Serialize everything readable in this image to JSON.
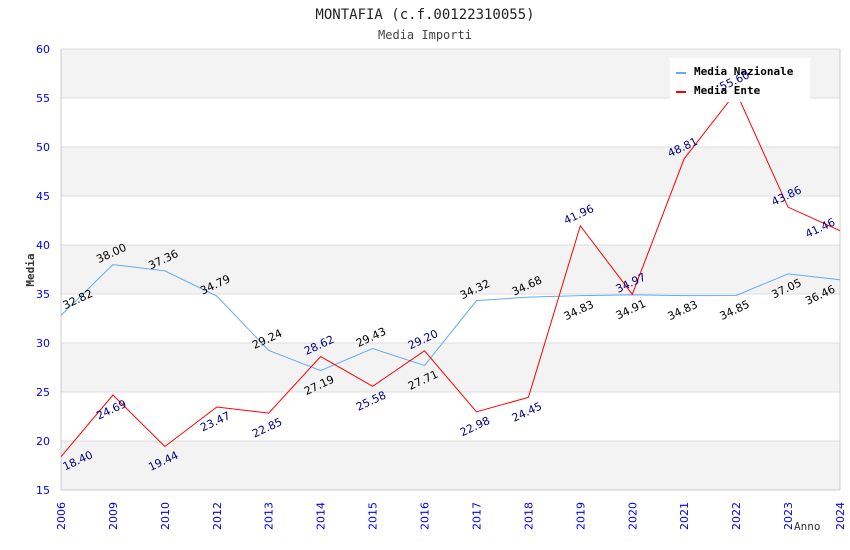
{
  "chart_data": {
    "type": "line",
    "title": "MONTAFIA (c.f.00122310055)",
    "subtitle": "Media Importi",
    "xlabel": "Anno",
    "ylabel": "Media",
    "ylim": [
      15,
      60
    ],
    "yticks": [
      15,
      20,
      25,
      30,
      35,
      40,
      45,
      50,
      55,
      60
    ],
    "grid": true,
    "legend_position": "top-right",
    "categories": [
      "2006",
      "2009",
      "2010",
      "2012",
      "2013",
      "2014",
      "2015",
      "2016",
      "2017",
      "2018",
      "2019",
      "2020",
      "2021",
      "2022",
      "2023",
      "2024"
    ],
    "series": [
      {
        "name": "Media Nazionale",
        "color": "#66aaee",
        "label_color": "#000000",
        "values": [
          32.82,
          38.0,
          37.36,
          34.79,
          29.24,
          27.19,
          29.43,
          27.71,
          34.32,
          34.68,
          34.83,
          34.91,
          34.83,
          34.85,
          37.05,
          36.46
        ]
      },
      {
        "name": "Media Ente",
        "color": "#ff0000",
        "label_color": "#000080",
        "values": [
          18.4,
          24.69,
          19.44,
          23.47,
          22.85,
          28.62,
          25.58,
          29.2,
          22.98,
          24.45,
          41.96,
          34.97,
          48.81,
          55.6,
          43.86,
          41.46
        ]
      }
    ]
  }
}
